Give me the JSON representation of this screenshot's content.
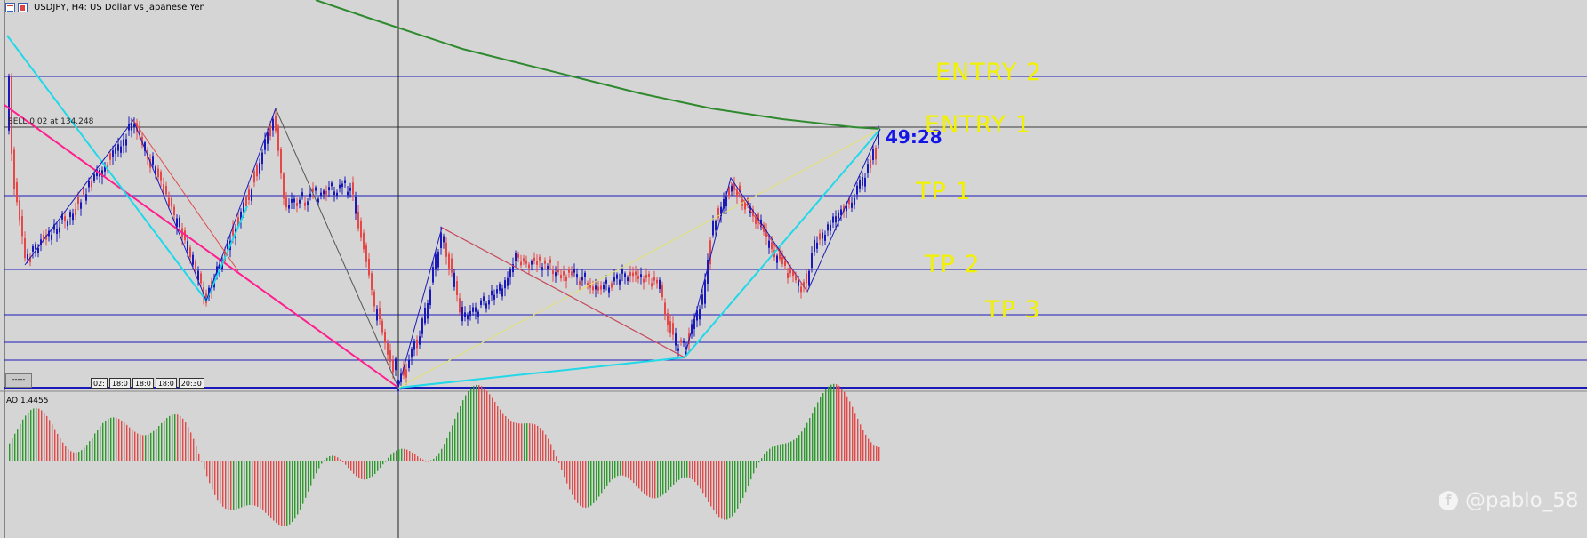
{
  "window": {
    "title": "USDJPY, H4:  US Dollar vs Japanese Yen",
    "icons": [
      "chart-list-icon",
      "chart-properties-icon"
    ]
  },
  "trade": {
    "sell_label": "SELL 0.02 at 134.248"
  },
  "countdown": "49:28",
  "levels": {
    "entry2": "ENTRY 2",
    "entry1": "ENTRY 1",
    "tp1": "TP 1",
    "tp2": "TP 2",
    "tp3": "TP 3"
  },
  "scroll_button": "-----",
  "time_tags": [
    "02:",
    "18:0",
    "18:0",
    "18:0",
    "20:30"
  ],
  "indicator": {
    "label": "AO 1.4455"
  },
  "watermark": {
    "text": "@pablo_58"
  },
  "colors": {
    "background": "#d5d5d5",
    "level_lines": "#1a1ab8",
    "zone_labels": "#f2f200",
    "bull_candle": "#1a1ab8",
    "bear_candle": "#e64848",
    "moving_average": "#2f8a2f",
    "zigzag_cyan": "#20d8e8",
    "trendline_magenta": "#ff1f8e",
    "ao_up": "#2e9a2e",
    "ao_down": "#e24a4a",
    "countdown": "#1414e6"
  }
}
